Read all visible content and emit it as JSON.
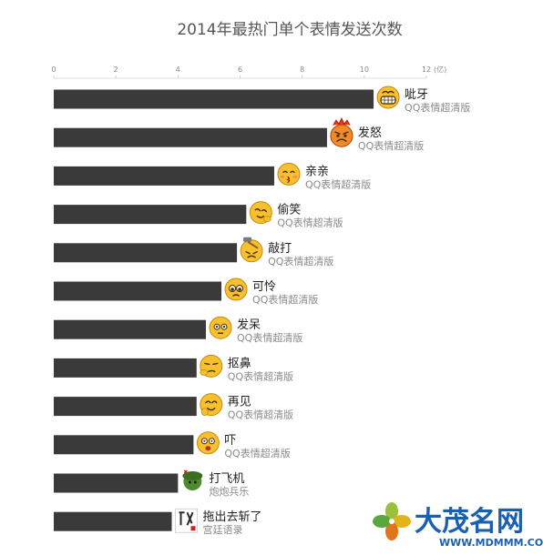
{
  "chart_data": {
    "type": "bar",
    "orientation": "horizontal",
    "title": "2014年最热门单个表情发送次数",
    "unit": "(亿)",
    "xlim": [
      0,
      12
    ],
    "ticks": [
      0,
      2,
      4,
      6,
      8,
      10,
      12
    ],
    "tick_labels": [
      "0",
      "2",
      "4",
      "6",
      "8",
      "10",
      "12"
    ],
    "bar_color": "#3a3a3a",
    "categories": [
      "呲牙",
      "发怒",
      "亲亲",
      "偷笑",
      "敲打",
      "可怜",
      "发呆",
      "抠鼻",
      "再见",
      "吓",
      "打飞机",
      "拖出去斩了"
    ],
    "subtitles": [
      "QQ表情超清版",
      "QQ表情超清版",
      "QQ表情超清版",
      "QQ表情超清版",
      "QQ表情超清版",
      "QQ表情超清版",
      "QQ表情超清版",
      "QQ表情超清版",
      "QQ表情超清版",
      "QQ表情超清版",
      "炮炮兵乐",
      "宫廷语录"
    ],
    "icons": [
      "grin-emoji-icon",
      "angry-emoji-icon",
      "kiss-emoji-icon",
      "snicker-emoji-icon",
      "hammer-emoji-icon",
      "pitiful-emoji-icon",
      "daze-emoji-icon",
      "nose-pick-emoji-icon",
      "wave-goodbye-emoji-icon",
      "scared-emoji-icon",
      "cannon-soldier-sticker-icon",
      "palace-quote-sticker-icon"
    ],
    "values": [
      10.3,
      8.8,
      7.1,
      6.2,
      5.9,
      5.4,
      4.9,
      4.6,
      4.6,
      4.5,
      4.0,
      3.8
    ]
  },
  "watermark": {
    "text": "大茂名网",
    "url": "WWW.MDMMM.COM",
    "colors": {
      "primary": "#1a5fb0",
      "clover": [
        "#9ac13c",
        "#e2b41a",
        "#e2741e",
        "#5ba63d"
      ]
    }
  }
}
